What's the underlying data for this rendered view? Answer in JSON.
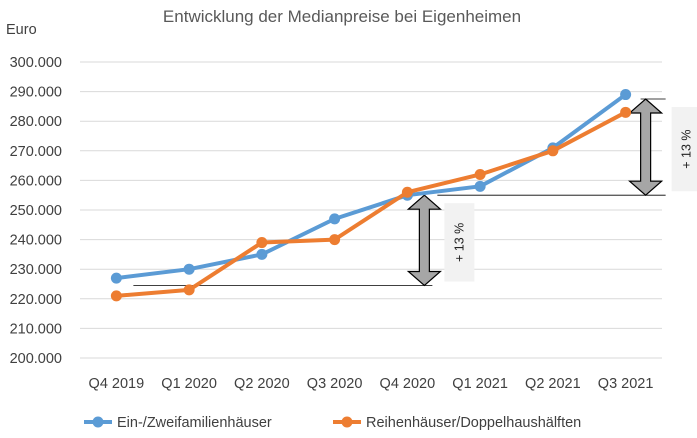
{
  "chart_data": {
    "type": "line",
    "title": "Entwicklung der Medianpreise bei Eigenheimen",
    "ylabel": "Euro",
    "xlabel": "",
    "categories": [
      "Q4 2019",
      "Q1 2020",
      "Q2 2020",
      "Q3 2020",
      "Q4 2020",
      "Q1 2021",
      "Q2 2021",
      "Q3 2021"
    ],
    "ylim": [
      200000,
      300000
    ],
    "yticks": [
      "200.000",
      "210.000",
      "220.000",
      "230.000",
      "240.000",
      "250.000",
      "260.000",
      "270.000",
      "280.000",
      "290.000",
      "300.000"
    ],
    "grid": true,
    "legend_position": "bottom",
    "series": [
      {
        "name": "Ein-/Zweifamilienhäuser",
        "color": "#5B9BD5",
        "values": [
          227000,
          230000,
          235000,
          247000,
          255000,
          258000,
          271000,
          289000
        ]
      },
      {
        "name": "Reihenhäuser/Doppelhaushälften",
        "color": "#ED7D31",
        "values": [
          221000,
          223000,
          239000,
          240000,
          256000,
          262000,
          270000,
          283000
        ]
      }
    ],
    "annotations": [
      {
        "label": "+ 13 %",
        "from": 224500,
        "to": 255000,
        "category_index": 4
      },
      {
        "label": "+ 13 %",
        "from": 255000,
        "to": 287500,
        "category_index": 7
      }
    ]
  }
}
